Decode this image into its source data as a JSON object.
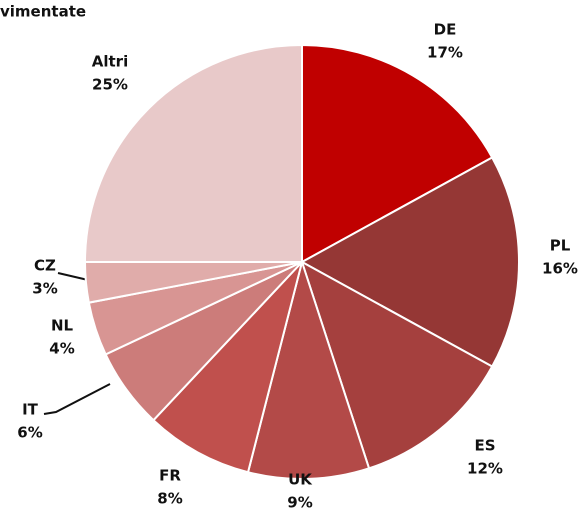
{
  "chart_data": {
    "type": "pie",
    "subtitle": "vimentate",
    "categories": [
      "DE",
      "PL",
      "ES",
      "UK",
      "FR",
      "IT",
      "NL",
      "CZ",
      "Altri"
    ],
    "values": [
      17,
      16,
      12,
      9,
      8,
      6,
      4,
      3,
      25
    ],
    "value_labels": [
      "17%",
      "16%",
      "12%",
      "9%",
      "8%",
      "6%",
      "4%",
      "3%",
      "25%"
    ],
    "colors": [
      "#c00000",
      "#953735",
      "#a5403e",
      "#b34a48",
      "#c0504d",
      "#cc7c7a",
      "#d89593",
      "#e0acaa",
      "#e8c9c9"
    ]
  }
}
